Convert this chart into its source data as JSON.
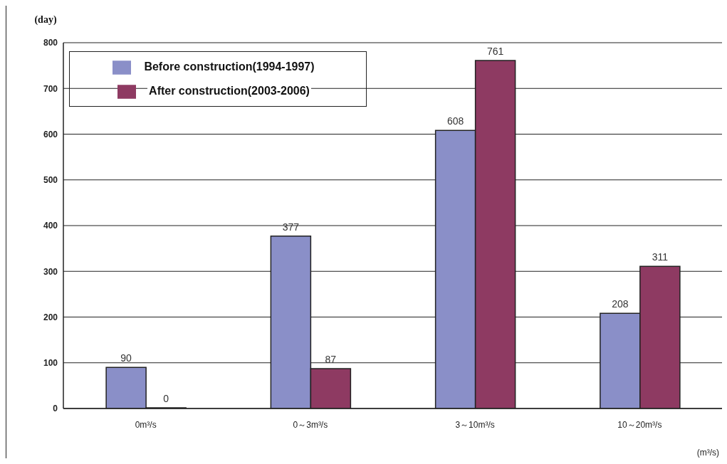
{
  "chart_data": {
    "type": "bar",
    "ylabel": "(day)",
    "xlabel": "(m³/s)",
    "categories": [
      "0m³/s",
      "0～3m³/s",
      "3～10m³/s",
      "10～20m³/s"
    ],
    "series": [
      {
        "name": "Before construction(1994-1997)",
        "color": "#8a8fc8",
        "values": [
          90,
          377,
          608,
          208
        ]
      },
      {
        "name": "After construction(2003-2006)",
        "color": "#8e3a62",
        "values": [
          0,
          87,
          761,
          311
        ]
      }
    ],
    "ylim": [
      0,
      800
    ],
    "yticks": [
      0,
      100,
      200,
      300,
      400,
      500,
      600,
      700,
      800
    ],
    "grid": "y",
    "legend": "top left",
    "data_labels": true
  }
}
